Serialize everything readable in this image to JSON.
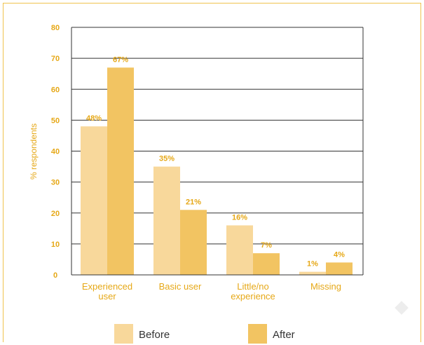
{
  "chart_data": {
    "type": "bar",
    "title": "",
    "xlabel": "",
    "ylabel": "% respondents",
    "ylim": [
      0,
      80
    ],
    "yticks": [
      0,
      10,
      20,
      30,
      40,
      50,
      60,
      70,
      80
    ],
    "categories": [
      [
        "Experienced",
        "user"
      ],
      [
        "Basic user"
      ],
      [
        "Little/no",
        "experience"
      ],
      [
        "Missing"
      ]
    ],
    "series": [
      {
        "name": "Before",
        "values": [
          48,
          35,
          16,
          1
        ],
        "labels": [
          "48%",
          "35%",
          "16%",
          "1%"
        ],
        "color": "#f8d89b"
      },
      {
        "name": "After",
        "values": [
          67,
          21,
          7,
          4
        ],
        "labels": [
          "67%",
          "21%",
          "7%",
          "4%"
        ],
        "color": "#f2c462"
      }
    ],
    "grid": true,
    "legend_position": "bottom"
  },
  "colors": {
    "accent_text": "#e6a817",
    "frame": "#f0c34e",
    "axis": "#333333"
  }
}
